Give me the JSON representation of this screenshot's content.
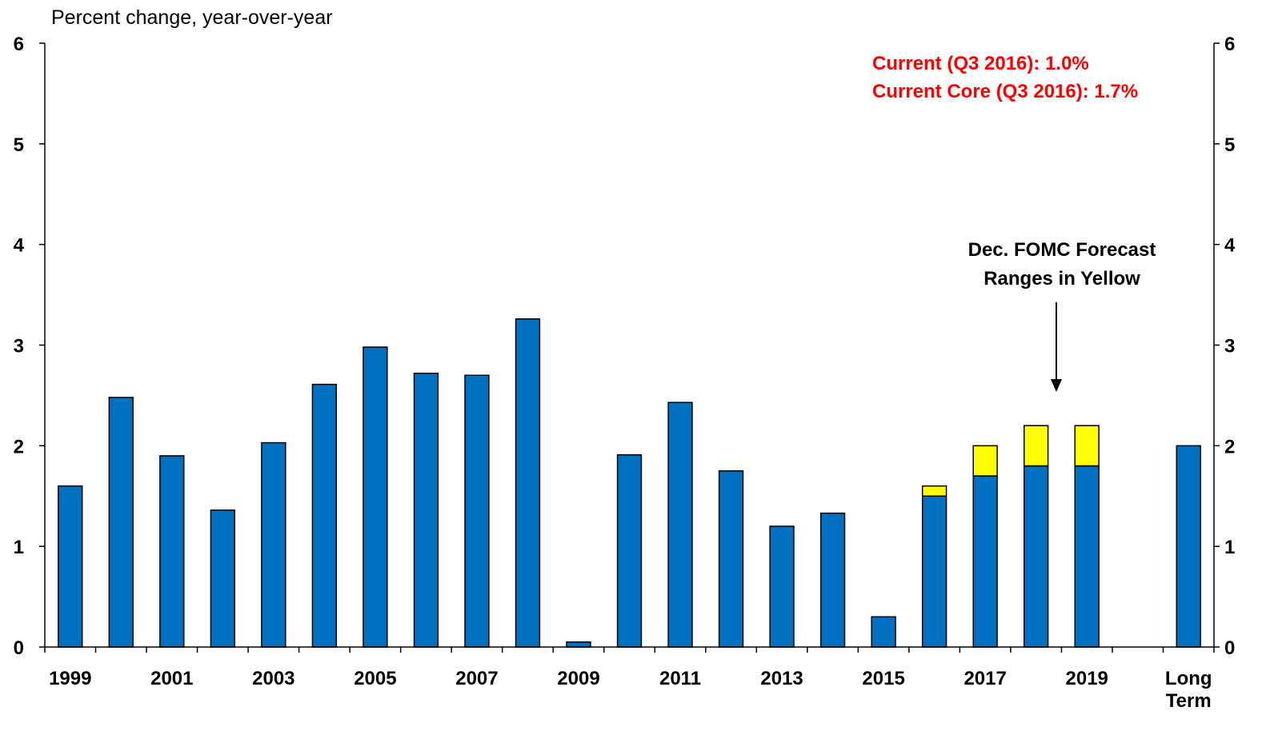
{
  "chart_data": {
    "type": "stacked_bar",
    "y_axis_label": "Percent change, year-over-year",
    "annotations": [
      "Current (Q3 2016): 1.0%",
      "Current Core (Q3 2016): 1.7%",
      "Dec. FOMC Forecast",
      "Ranges in Yellow"
    ],
    "categories": [
      "1999",
      null,
      "2001",
      null,
      "2003",
      null,
      "2005",
      null,
      "2007",
      null,
      "2009",
      null,
      "2011",
      null,
      "2013",
      null,
      "2015",
      null,
      "2017",
      null,
      "2019",
      null,
      "Long Term"
    ],
    "series": [
      {
        "color": "#0070c0",
        "values": [
          1.6,
          2.48,
          1.9,
          1.36,
          2.03,
          2.61,
          2.98,
          2.72,
          2.7,
          3.26,
          0.05,
          1.91,
          2.43,
          1.75,
          1.2,
          1.33,
          0.3,
          1.5,
          1.7,
          1.8,
          1.8,
          null,
          2.0
        ]
      },
      {
        "color": "#ffff00",
        "values": [
          null,
          null,
          null,
          null,
          null,
          null,
          null,
          null,
          null,
          null,
          null,
          null,
          null,
          null,
          null,
          null,
          null,
          0.1,
          0.3,
          0.4,
          0.4,
          null,
          null
        ]
      }
    ],
    "ylim": [
      0,
      6
    ],
    "yticks": [
      0,
      1,
      2,
      3,
      4,
      5,
      6
    ],
    "y2lim": [
      0,
      6
    ],
    "y2ticks": [
      0,
      1,
      2,
      3,
      4,
      5,
      6
    ]
  }
}
